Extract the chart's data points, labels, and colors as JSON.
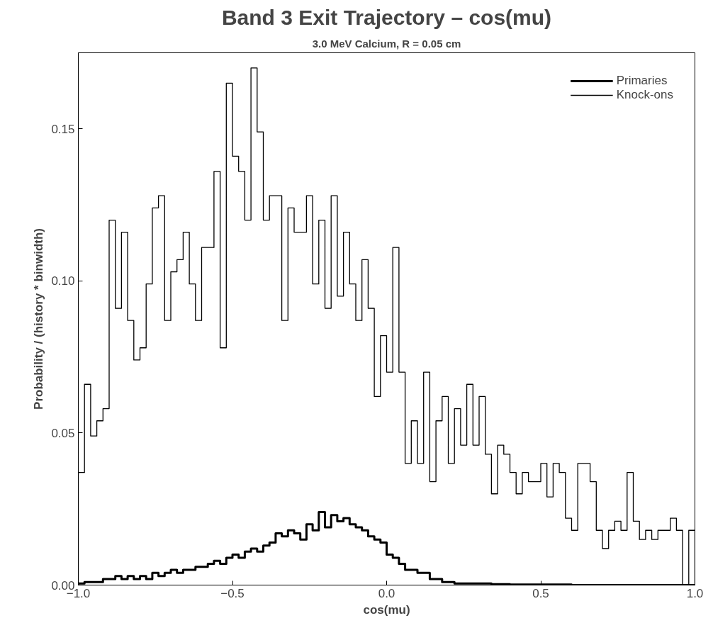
{
  "chart_data": {
    "type": "histogram",
    "title": "Band 3 Exit Trajectory – cos(mu)",
    "subtitle": "3.0 MeV Calcium, R = 0.05 cm",
    "xlabel": "cos(mu)",
    "ylabel": "Probability / (history * binwidth)",
    "bins": [
      -1.0,
      -0.98,
      -0.96,
      -0.94,
      -0.92,
      -0.9,
      -0.88,
      -0.86,
      -0.84,
      -0.82,
      -0.8,
      -0.78,
      -0.76,
      -0.74,
      -0.72,
      -0.7,
      -0.68,
      -0.66,
      -0.64,
      -0.62,
      -0.6,
      -0.58,
      -0.56,
      -0.54,
      -0.52,
      -0.5,
      -0.48,
      -0.46,
      -0.44,
      -0.42,
      -0.4,
      -0.38,
      -0.36,
      -0.34,
      -0.32,
      -0.3,
      -0.28,
      -0.26,
      -0.24,
      -0.22,
      -0.2,
      -0.18,
      -0.16,
      -0.14,
      -0.12,
      -0.1,
      -0.08,
      -0.06,
      -0.04,
      -0.02,
      0.0,
      0.02,
      0.04,
      0.06,
      0.08,
      0.1,
      0.12,
      0.14,
      0.16,
      0.18,
      0.2,
      0.22,
      0.24,
      0.26,
      0.28,
      0.3,
      0.32,
      0.34,
      0.36,
      0.38,
      0.4,
      0.42,
      0.44,
      0.46,
      0.48,
      0.5,
      0.52,
      0.54,
      0.56,
      0.58,
      0.6,
      0.62,
      0.64,
      0.66,
      0.68,
      0.7,
      0.72,
      0.74,
      0.76,
      0.78,
      0.8,
      0.82,
      0.84,
      0.86,
      0.88,
      0.9,
      0.92,
      0.94,
      0.96,
      0.98,
      1.0
    ],
    "series": [
      {
        "name": "Primaries",
        "color": "#000000",
        "values": [
          0.0005,
          0.001,
          0.001,
          0.001,
          0.002,
          0.002,
          0.003,
          0.002,
          0.003,
          0.002,
          0.003,
          0.002,
          0.004,
          0.003,
          0.004,
          0.005,
          0.004,
          0.005,
          0.005,
          0.006,
          0.006,
          0.007,
          0.008,
          0.007,
          0.009,
          0.01,
          0.009,
          0.011,
          0.012,
          0.011,
          0.013,
          0.014,
          0.017,
          0.016,
          0.018,
          0.017,
          0.015,
          0.02,
          0.018,
          0.024,
          0.019,
          0.023,
          0.021,
          0.022,
          0.02,
          0.019,
          0.018,
          0.016,
          0.015,
          0.014,
          0.01,
          0.009,
          0.007,
          0.005,
          0.005,
          0.004,
          0.004,
          0.002,
          0.002,
          0.001,
          0.001,
          0.0005,
          0.0005,
          0.0005,
          0.0005,
          0.0005,
          0.0005,
          0.0003,
          0.0003,
          0.0003,
          0.0002,
          0.0002,
          0.0002,
          0.0002,
          0.0002,
          0.0002,
          0.0002,
          0.0002,
          0.0002,
          0.0002,
          0,
          0,
          0,
          0,
          0,
          0,
          0,
          0,
          0,
          0,
          0,
          0,
          0,
          0,
          0,
          0,
          0,
          0,
          0,
          0
        ]
      },
      {
        "name": "Knock-ons",
        "color": "#000000",
        "values": [
          0.037,
          0.066,
          0.049,
          0.054,
          0.058,
          0.12,
          0.091,
          0.116,
          0.087,
          0.074,
          0.078,
          0.099,
          0.124,
          0.128,
          0.087,
          0.103,
          0.107,
          0.116,
          0.099,
          0.087,
          0.111,
          0.111,
          0.136,
          0.078,
          0.165,
          0.141,
          0.136,
          0.12,
          0.17,
          0.149,
          0.12,
          0.128,
          0.128,
          0.087,
          0.124,
          0.116,
          0.116,
          0.128,
          0.099,
          0.12,
          0.091,
          0.128,
          0.095,
          0.116,
          0.099,
          0.087,
          0.107,
          0.091,
          0.062,
          0.082,
          0.07,
          0.111,
          0.07,
          0.04,
          0.054,
          0.04,
          0.07,
          0.034,
          0.054,
          0.062,
          0.04,
          0.058,
          0.046,
          0.066,
          0.046,
          0.062,
          0.043,
          0.03,
          0.046,
          0.043,
          0.037,
          0.03,
          0.037,
          0.034,
          0.034,
          0.04,
          0.029,
          0.04,
          0.037,
          0.022,
          0.018,
          0.04,
          0.04,
          0.034,
          0.018,
          0.012,
          0.018,
          0.021,
          0.018,
          0.037,
          0.021,
          0.015,
          0.018,
          0.015,
          0.018,
          0.018,
          0.022,
          0.018,
          0.0,
          0.018
        ]
      }
    ],
    "xlim": [
      -1.0,
      1.0
    ],
    "ylim": [
      0,
      0.175
    ],
    "xticks": [
      {
        "value": -1.0,
        "label": "−1.0"
      },
      {
        "value": -0.5,
        "label": "−0.5"
      },
      {
        "value": 0.0,
        "label": "0.0"
      },
      {
        "value": 0.5,
        "label": "0.5"
      },
      {
        "value": 1.0,
        "label": "1.0"
      }
    ],
    "yticks": [
      {
        "value": 0.0,
        "label": "0.00"
      },
      {
        "value": 0.05,
        "label": "0.05"
      },
      {
        "value": 0.1,
        "label": "0.10"
      },
      {
        "value": 0.15,
        "label": "0.15"
      }
    ],
    "legend": "top right",
    "grid": false
  }
}
